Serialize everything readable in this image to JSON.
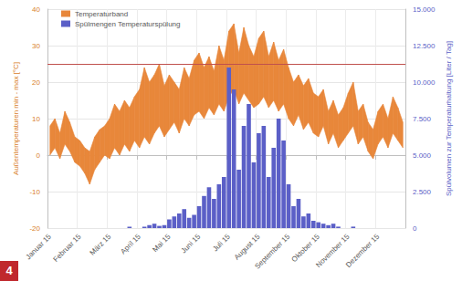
{
  "chart_data": {
    "type": "band_bar",
    "figure_label": "4",
    "categories": [
      "Januar 15",
      null,
      null,
      null,
      null,
      null,
      "Februar 15",
      null,
      null,
      null,
      null,
      null,
      "März 15",
      null,
      null,
      null,
      null,
      null,
      "April 15",
      null,
      null,
      null,
      null,
      null,
      "Mai 15",
      null,
      null,
      null,
      null,
      null,
      "Juni 15",
      null,
      null,
      null,
      null,
      null,
      "Juli 15",
      null,
      null,
      null,
      null,
      null,
      "August 15",
      null,
      null,
      null,
      null,
      null,
      "September 15",
      null,
      null,
      null,
      null,
      null,
      "Oktober 15",
      null,
      null,
      null,
      null,
      null,
      "November 15",
      null,
      null,
      null,
      null,
      null,
      "Dezember 15",
      null,
      null,
      null,
      null,
      null
    ],
    "series": [
      {
        "name": "Temperaturband",
        "type": "band",
        "color": "#e8873a",
        "low": [
          0,
          2,
          -1,
          3,
          1,
          -2,
          -3,
          -5,
          -8,
          -4,
          -2,
          0,
          -1,
          2,
          0,
          3,
          1,
          4,
          2,
          5,
          3,
          6,
          8,
          5,
          7,
          9,
          6,
          10,
          8,
          11,
          12,
          10,
          13,
          11,
          14,
          12,
          16,
          18,
          14,
          17,
          15,
          13,
          14,
          16,
          13,
          15,
          12,
          14,
          10,
          8,
          11,
          7,
          9,
          6,
          5,
          8,
          3,
          6,
          2,
          4,
          6,
          8,
          3,
          5,
          1,
          -1,
          3,
          5,
          2,
          6,
          4,
          2
        ],
        "high": [
          8,
          10,
          6,
          12,
          9,
          5,
          4,
          2,
          1,
          5,
          7,
          8,
          10,
          14,
          12,
          15,
          13,
          16,
          18,
          24,
          20,
          22,
          25,
          19,
          22,
          20,
          18,
          24,
          21,
          26,
          28,
          24,
          27,
          23,
          30,
          26,
          34,
          36,
          28,
          35,
          30,
          27,
          32,
          34,
          27,
          31,
          26,
          29,
          24,
          20,
          22,
          19,
          21,
          17,
          16,
          18,
          12,
          15,
          11,
          13,
          17,
          20,
          12,
          14,
          9,
          7,
          12,
          14,
          10,
          16,
          13,
          9
        ]
      },
      {
        "name": "Spülmengen Temperaturspülung",
        "type": "bar",
        "color": "#5b5fc7",
        "axis": "y2",
        "values": [
          0,
          0,
          0,
          0,
          0,
          0,
          0,
          0,
          0,
          0,
          0,
          0,
          0,
          0,
          0,
          0,
          100,
          0,
          0,
          100,
          200,
          300,
          150,
          200,
          600,
          800,
          1000,
          1300,
          700,
          900,
          1500,
          2200,
          2800,
          2000,
          3000,
          3500,
          11000,
          9500,
          4000,
          7000,
          8500,
          4500,
          6500,
          7000,
          3500,
          5500,
          7500,
          6000,
          3000,
          1500,
          2000,
          800,
          1000,
          500,
          400,
          300,
          200,
          300,
          100,
          0,
          0,
          100,
          0,
          0,
          0,
          0,
          0,
          0,
          0,
          0,
          0,
          0
        ]
      }
    ],
    "y_label": "Außentemperaturen min - max [°C]",
    "y2_label": "Spülvolumen zur Temperaturhaltung [Liter / Tag]",
    "ylim": [
      -20,
      40
    ],
    "yticks": [
      -20,
      -10,
      0,
      10,
      20,
      30,
      40
    ],
    "y2lim": [
      0,
      15000
    ],
    "y2ticks": [
      0,
      {
        "value": 2500,
        "label": "2.500"
      },
      {
        "value": 5000,
        "label": "5.000"
      },
      {
        "value": 7500,
        "label": "7.500"
      },
      {
        "value": 10000,
        "label": "10.000"
      },
      {
        "value": 12500,
        "label": "12.500"
      },
      {
        "value": 15000,
        "label": "15.000"
      }
    ],
    "hlines": [
      {
        "value": 25,
        "color": "#c0504d"
      }
    ],
    "grid": true,
    "legend": "upper left"
  }
}
